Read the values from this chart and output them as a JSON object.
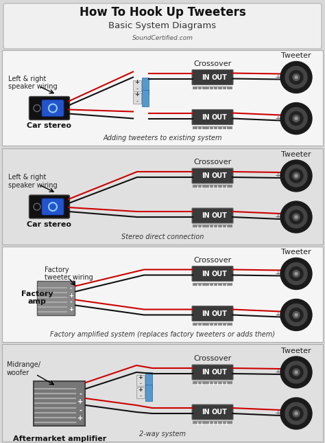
{
  "title": "How To Hook Up Tweeters",
  "subtitle": "Basic System Diagrams",
  "website": "SoundCertified.com",
  "bg_outer": "#d8d8d8",
  "header_bg": "#f0f0f0",
  "section_bg_light": "#f5f5f5",
  "section_bg_dark": "#e0e0e0",
  "wire_red": "#cc0000",
  "wire_black": "#111111",
  "crossover_bg": "#3a3a3a",
  "crossover_fg": "#ffffff",
  "tweeter_outer": "#1a1a1a",
  "tweeter_mid": "#444444",
  "tweeter_inner": "#2a2a2a",
  "stereo_bg": "#111111",
  "stereo_btn": "#2255cc",
  "amp_bg": "#888888",
  "cap_blue": "#4488cc",
  "sections": [
    {
      "label": "Adding tweeters to existing system",
      "left_label": "Left & right\nspeaker wiring",
      "device_label": "Car stereo",
      "device_type": "stereo",
      "has_capacitor": true,
      "wires_curved": false
    },
    {
      "label": "Stereo direct connection",
      "left_label": "Left & right\nspeaker wiring",
      "device_label": "Car stereo",
      "device_type": "stereo",
      "has_capacitor": false,
      "wires_curved": true
    },
    {
      "label": "Factory amplified system (replaces factory tweeters or adds them)",
      "left_label": "Factory\ntweeter wiring",
      "device_label": "Factory\namp",
      "device_type": "amp",
      "has_capacitor": false,
      "wires_curved": true
    },
    {
      "label": "2-way system",
      "left_label": "Midrange/\nwoofer",
      "device_label": "Aftermarket amplifier",
      "device_type": "amp_large",
      "has_capacitor": true,
      "wires_curved": false
    }
  ]
}
